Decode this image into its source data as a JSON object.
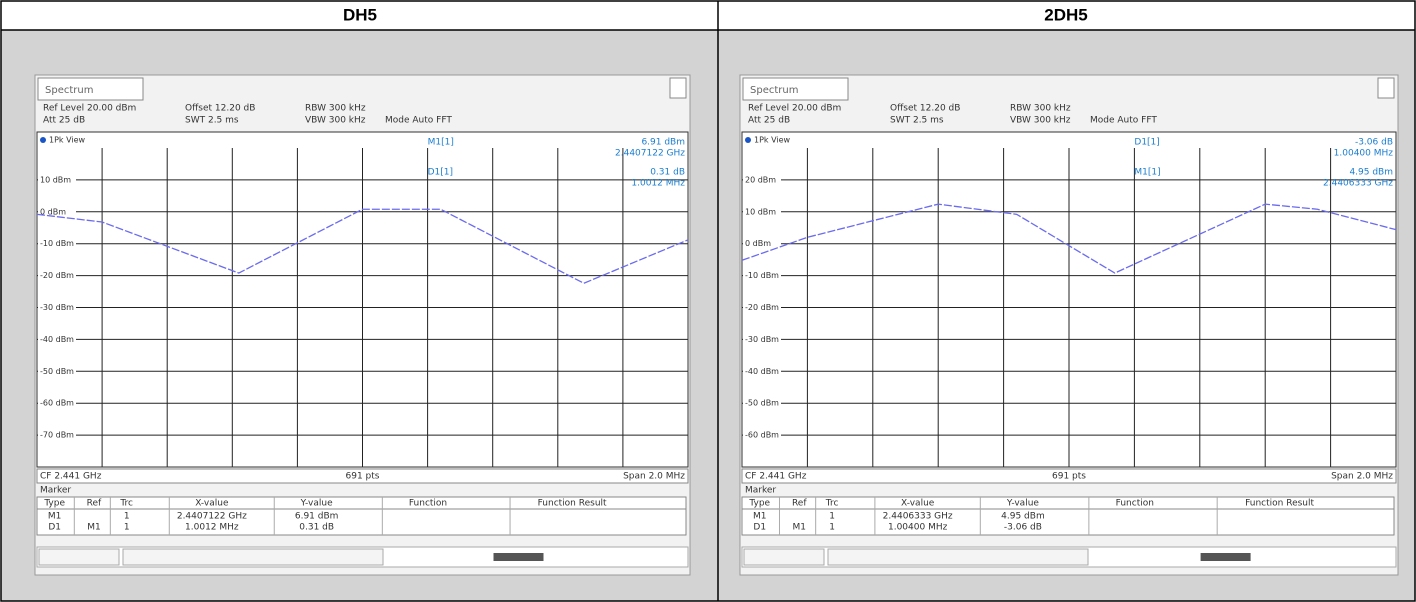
{
  "header": {
    "cells": [
      "DH5",
      "2DH5"
    ]
  },
  "panels": [
    {
      "tab": "Spectrum",
      "settings": [
        [
          "Ref Level 20.00 dBm",
          "Offset 12.20 dB",
          "RBW 300 kHz"
        ],
        [
          "Att 25 dB",
          "SWT 2.5 ms",
          "VBW 300 kHz",
          "Mode Auto FFT"
        ]
      ],
      "view": "1Pk View",
      "y_labels": [
        "10 dBm",
        "0 dBm",
        "-10 dBm",
        "-20 dBm",
        "-30 dBm",
        "-40 dBm",
        "-50 dBm",
        "-60 dBm",
        "-70 dBm"
      ],
      "marker_labels": [
        "M1[1]",
        "D1[1]"
      ],
      "marker_values": [
        "6.91 dBm",
        "2.4407122 GHz",
        "0.31 dB",
        "1.0012 MHz"
      ],
      "footer": [
        "CF 2.441 GHz",
        "691 pts",
        "Span 2.0 MHz"
      ],
      "marker_title": "Marker",
      "marker_table": {
        "header": [
          "Type",
          "Ref",
          "Trc",
          "X-value",
          "Y-value",
          "Function",
          "Function Result"
        ],
        "rows": [
          [
            "M1",
            "",
            "1",
            "2.4407122 GHz",
            "6.91 dBm"
          ],
          [
            "D1",
            "M1",
            "1",
            "1.0012 MHz",
            "0.31 dB"
          ]
        ]
      }
    },
    {
      "tab": "Spectrum",
      "settings": [
        [
          "Ref Level 20.00 dBm",
          "Offset 12.20 dB",
          "RBW 300 kHz"
        ],
        [
          "Att 25 dB",
          "SWT 2.5 ms",
          "VBW 300 kHz",
          "Mode Auto FFT"
        ]
      ],
      "view": "1Pk View",
      "y_labels": [
        "20 dBm",
        "10 dBm",
        "0 dBm",
        "-10 dBm",
        "-20 dBm",
        "-30 dBm",
        "-40 dBm",
        "-50 dBm",
        "-60 dBm"
      ],
      "marker_labels": [
        "D1[1]",
        "M1[1]"
      ],
      "marker_values": [
        "-3.06 dB",
        "1.00400 MHz",
        "4.95 dBm",
        "2.4406333 GHz"
      ],
      "footer": [
        "CF 2.441 GHz",
        "691 pts",
        "Span 2.0 MHz"
      ],
      "marker_title": "Marker",
      "marker_table": {
        "header": [
          "Type",
          "Ref",
          "Trc",
          "X-value",
          "Y-value",
          "Function",
          "Function Result"
        ],
        "rows": [
          [
            "M1",
            "",
            "1",
            "2.4406333 GHz",
            "4.95 dBm"
          ],
          [
            "D1",
            "M1",
            "1",
            "1.00400 MHz",
            "-3.06 dB"
          ]
        ]
      }
    }
  ]
}
